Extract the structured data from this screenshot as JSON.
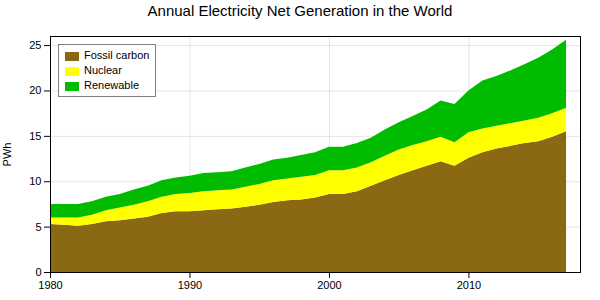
{
  "chart_data": {
    "type": "area",
    "title": "Annual Electricity Net Generation in the World",
    "ylabel": "PWh",
    "stacked": true,
    "grid": true,
    "legend": "upper-left",
    "xlim": [
      1980,
      2018
    ],
    "ylim": [
      0,
      26
    ],
    "xticks": [
      1980,
      1990,
      2000,
      2010
    ],
    "yticks": [
      0,
      5,
      10,
      15,
      20,
      25
    ],
    "x": [
      1980,
      1981,
      1982,
      1983,
      1984,
      1985,
      1986,
      1987,
      1988,
      1989,
      1990,
      1991,
      1992,
      1993,
      1994,
      1995,
      1996,
      1997,
      1998,
      1999,
      2000,
      2001,
      2002,
      2003,
      2004,
      2005,
      2006,
      2007,
      2008,
      2009,
      2010,
      2011,
      2012,
      2013,
      2014,
      2015,
      2016,
      2017
    ],
    "series": [
      {
        "name": "Fossil carbon",
        "color": "#8B6914",
        "values": [
          5.3,
          5.2,
          5.1,
          5.3,
          5.6,
          5.7,
          5.9,
          6.1,
          6.5,
          6.7,
          6.7,
          6.8,
          6.9,
          7.0,
          7.2,
          7.4,
          7.7,
          7.9,
          8.0,
          8.2,
          8.6,
          8.6,
          8.9,
          9.5,
          10.1,
          10.7,
          11.2,
          11.7,
          12.2,
          11.7,
          12.6,
          13.2,
          13.6,
          13.9,
          14.2,
          14.4,
          14.9,
          15.5
        ]
      },
      {
        "name": "Nuclear",
        "color": "#FFFF00",
        "values": [
          0.7,
          0.8,
          0.9,
          1.0,
          1.2,
          1.4,
          1.5,
          1.7,
          1.8,
          1.9,
          2.0,
          2.1,
          2.1,
          2.1,
          2.2,
          2.3,
          2.4,
          2.4,
          2.5,
          2.5,
          2.6,
          2.6,
          2.6,
          2.6,
          2.7,
          2.8,
          2.8,
          2.7,
          2.7,
          2.6,
          2.8,
          2.6,
          2.5,
          2.5,
          2.5,
          2.6,
          2.6,
          2.6
        ]
      },
      {
        "name": "Renewable",
        "color": "#00BB00",
        "values": [
          1.5,
          1.5,
          1.5,
          1.5,
          1.5,
          1.5,
          1.7,
          1.7,
          1.8,
          1.8,
          1.9,
          2.0,
          2.0,
          2.0,
          2.1,
          2.2,
          2.3,
          2.3,
          2.4,
          2.5,
          2.6,
          2.6,
          2.7,
          2.7,
          2.9,
          3.0,
          3.2,
          3.5,
          4.0,
          4.2,
          4.6,
          5.3,
          5.5,
          5.8,
          6.2,
          6.6,
          7.0,
          7.5
        ]
      }
    ]
  }
}
